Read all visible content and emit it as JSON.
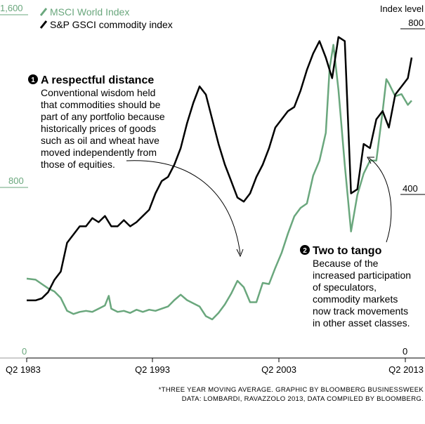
{
  "legend": {
    "msci_label": "MSCI World Index",
    "gsci_label": "S&P GSCI commodity index"
  },
  "left_axis": {
    "ticks": [
      "1,600",
      "800",
      "0"
    ]
  },
  "right_axis": {
    "title": "Index level",
    "ticks": [
      "800",
      "400",
      "0"
    ]
  },
  "x_axis": {
    "ticks": [
      "Q2 1983",
      "Q2 1993",
      "Q2 2003",
      "Q2 2013"
    ]
  },
  "annotation1": {
    "badge": "1",
    "heading": "A respectful distance",
    "lines": [
      "Conventional wisdom held",
      "that commodities should be",
      "part of any portfolio because",
      "historically prices of goods",
      "such as oil and wheat have",
      "moved independently from",
      "those of equities."
    ]
  },
  "annotation2": {
    "badge": "2",
    "heading": "Two to tango",
    "lines": [
      "Because of the",
      "increased participation",
      "of speculators,",
      "commodity markets",
      "now track movements",
      "in other asset classes."
    ]
  },
  "footnote": {
    "line1": "*THREE YEAR MOVING AVERAGE. GRAPHIC BY BLOOMBERG BUSINESSWEEK",
    "line2": "DATA: LOMBARDI, RAVAZZOLO 2013, DATA COMPILED BY BLOOMBERG."
  },
  "colors": {
    "msci": "#6aa77d",
    "gsci": "#000000",
    "axis": "#000000"
  },
  "chart_data": {
    "type": "line",
    "x_unit": "year",
    "ylim_left": [
      0,
      1600
    ],
    "ylim_right": [
      0,
      800
    ],
    "series": [
      {
        "name": "MSCI World Index",
        "axis": "left",
        "points": [
          [
            1983.3,
            370
          ],
          [
            1984.0,
            365
          ],
          [
            1984.5,
            345
          ],
          [
            1985.0,
            325
          ],
          [
            1985.5,
            310
          ],
          [
            1986.0,
            280
          ],
          [
            1986.5,
            220
          ],
          [
            1987.0,
            205
          ],
          [
            1987.5,
            215
          ],
          [
            1988.0,
            220
          ],
          [
            1988.5,
            215
          ],
          [
            1989.0,
            230
          ],
          [
            1989.5,
            245
          ],
          [
            1989.8,
            290
          ],
          [
            1990.0,
            230
          ],
          [
            1990.5,
            215
          ],
          [
            1991.0,
            220
          ],
          [
            1991.5,
            210
          ],
          [
            1992.0,
            225
          ],
          [
            1992.5,
            215
          ],
          [
            1993.0,
            225
          ],
          [
            1993.5,
            220
          ],
          [
            1994.0,
            230
          ],
          [
            1994.5,
            240
          ],
          [
            1995.0,
            270
          ],
          [
            1995.5,
            295
          ],
          [
            1996.0,
            270
          ],
          [
            1996.5,
            255
          ],
          [
            1997.0,
            240
          ],
          [
            1997.5,
            195
          ],
          [
            1998.0,
            180
          ],
          [
            1998.5,
            210
          ],
          [
            1999.0,
            250
          ],
          [
            1999.5,
            300
          ],
          [
            2000.0,
            360
          ],
          [
            2000.5,
            330
          ],
          [
            2001.0,
            260
          ],
          [
            2001.5,
            260
          ],
          [
            2002.0,
            350
          ],
          [
            2002.5,
            345
          ],
          [
            2003.0,
            420
          ],
          [
            2003.5,
            490
          ],
          [
            2004.0,
            580
          ],
          [
            2004.5,
            660
          ],
          [
            2005.0,
            700
          ],
          [
            2005.5,
            720
          ],
          [
            2006.0,
            850
          ],
          [
            2006.5,
            920
          ],
          [
            2007.0,
            1050
          ],
          [
            2007.3,
            1350
          ],
          [
            2007.6,
            1460
          ],
          [
            2008.0,
            1250
          ],
          [
            2008.5,
            900
          ],
          [
            2009.0,
            590
          ],
          [
            2009.5,
            760
          ],
          [
            2010.0,
            860
          ],
          [
            2010.5,
            920
          ],
          [
            2011.0,
            920
          ],
          [
            2011.5,
            1150
          ],
          [
            2011.8,
            1300
          ],
          [
            2012.0,
            1280
          ],
          [
            2012.5,
            1220
          ],
          [
            2013.0,
            1230
          ],
          [
            2013.5,
            1180
          ],
          [
            2013.8,
            1200
          ]
        ]
      },
      {
        "name": "S&P GSCI commodity index",
        "axis": "right",
        "points": [
          [
            1983.3,
            140
          ],
          [
            1984.0,
            140
          ],
          [
            1984.5,
            145
          ],
          [
            1985.0,
            160
          ],
          [
            1985.5,
            190
          ],
          [
            1986.0,
            210
          ],
          [
            1986.5,
            280
          ],
          [
            1987.0,
            300
          ],
          [
            1987.5,
            320
          ],
          [
            1988.0,
            320
          ],
          [
            1988.5,
            340
          ],
          [
            1989.0,
            330
          ],
          [
            1989.5,
            345
          ],
          [
            1990.0,
            320
          ],
          [
            1990.5,
            320
          ],
          [
            1991.0,
            335
          ],
          [
            1991.5,
            320
          ],
          [
            1992.0,
            330
          ],
          [
            1992.5,
            345
          ],
          [
            1993.0,
            360
          ],
          [
            1993.5,
            400
          ],
          [
            1994.0,
            430
          ],
          [
            1994.5,
            440
          ],
          [
            1995.0,
            470
          ],
          [
            1995.5,
            510
          ],
          [
            1996.0,
            570
          ],
          [
            1996.5,
            620
          ],
          [
            1997.0,
            660
          ],
          [
            1997.5,
            640
          ],
          [
            1998.0,
            580
          ],
          [
            1998.5,
            520
          ],
          [
            1999.0,
            470
          ],
          [
            1999.5,
            430
          ],
          [
            2000.0,
            390
          ],
          [
            2000.5,
            380
          ],
          [
            2001.0,
            400
          ],
          [
            2001.5,
            440
          ],
          [
            2002.0,
            470
          ],
          [
            2002.5,
            510
          ],
          [
            2003.0,
            560
          ],
          [
            2003.5,
            580
          ],
          [
            2004.0,
            600
          ],
          [
            2004.5,
            610
          ],
          [
            2005.0,
            650
          ],
          [
            2005.5,
            700
          ],
          [
            2006.0,
            740
          ],
          [
            2006.5,
            770
          ],
          [
            2007.0,
            730
          ],
          [
            2007.5,
            680
          ],
          [
            2008.0,
            780
          ],
          [
            2008.5,
            770
          ],
          [
            2009.0,
            400
          ],
          [
            2009.5,
            410
          ],
          [
            2010.0,
            520
          ],
          [
            2010.5,
            510
          ],
          [
            2011.0,
            580
          ],
          [
            2011.5,
            600
          ],
          [
            2012.0,
            560
          ],
          [
            2012.5,
            640
          ],
          [
            2013.0,
            660
          ],
          [
            2013.5,
            680
          ],
          [
            2013.8,
            730
          ]
        ]
      }
    ]
  }
}
